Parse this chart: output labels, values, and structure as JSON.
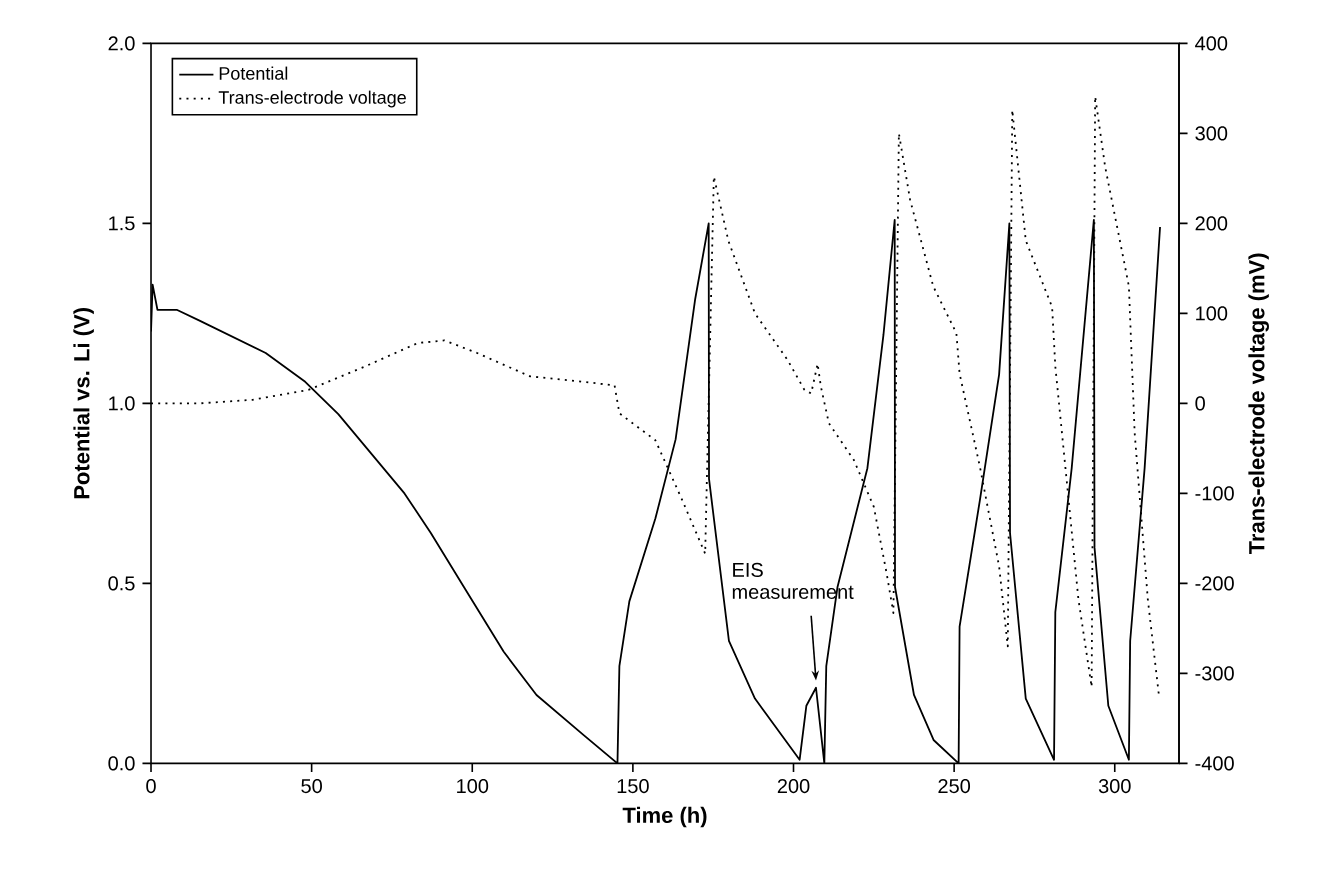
{
  "chart_data": {
    "type": "line",
    "xlabel": "Time (h)",
    "ylabel": "Potential vs. Li (V)",
    "y2label": "Trans-electrode voltage (mV)",
    "xlim": [
      0,
      320
    ],
    "xticks": [
      0,
      50,
      100,
      150,
      200,
      250,
      300
    ],
    "ylim": [
      0,
      2
    ],
    "yticks": [
      {
        "value": 0,
        "label": "0.0"
      },
      {
        "value": 0.5,
        "label": "0.5"
      },
      {
        "value": 1,
        "label": "1.0"
      },
      {
        "value": 1.5,
        "label": "1.5"
      },
      {
        "value": 2,
        "label": "2.0"
      }
    ],
    "y2lim": [
      -400,
      400
    ],
    "y2ticks": [
      -400,
      -300,
      -200,
      -100,
      0,
      100,
      200,
      300,
      400
    ],
    "legend": "top left",
    "annotations": [
      {
        "text": "EIS measurement",
        "x": 207,
        "y": 0.21
      }
    ],
    "series": [
      {
        "name": "Potential",
        "color": "#000000",
        "line_style": "solid",
        "x": [
          0,
          0.5,
          2,
          8,
          15.1,
          35.7,
          48,
          58.3,
          68.6,
          78.9,
          87.1,
          97.4,
          109.8,
          120,
          134.5,
          145.2,
          145.8,
          148.9,
          157,
          163.3,
          169.4,
          173.6,
          173.7,
          179.9,
          188,
          201.9,
          204,
          207,
          209.6,
          210.2,
          213.7,
          223,
          228,
          231.5,
          231.6,
          237.5,
          243.6,
          251.4,
          251.7,
          258,
          264,
          267.2,
          267.4,
          272.3,
          281.1,
          281.5,
          286.6,
          293.5,
          293.7,
          298,
          304.4,
          304.8,
          309.3,
          314.1
        ],
        "values": [
          1.2,
          1.33,
          1.26,
          1.26,
          1.23,
          1.14,
          1.06,
          0.97,
          0.86,
          0.75,
          0.64,
          0.49,
          0.31,
          0.19,
          0.08,
          0,
          0.27,
          0.45,
          0.68,
          0.9,
          1.29,
          1.5,
          0.79,
          0.34,
          0.18,
          0.01,
          0.16,
          0.21,
          0,
          0.27,
          0.49,
          0.82,
          1.19,
          1.51,
          0.49,
          0.19,
          0.065,
          0,
          0.38,
          0.73,
          1.08,
          1.5,
          0.64,
          0.18,
          0.01,
          0.42,
          0.82,
          1.51,
          0.6,
          0.16,
          0.01,
          0.34,
          0.82,
          1.49
        ]
      },
      {
        "name": "Trans-electrode voltage",
        "color": "#000000",
        "line_style": "dotted",
        "axis": "y2",
        "x": [
          0,
          15.1,
          31.6,
          49,
          66.6,
          83,
          91.3,
          101.5,
          118,
          134.5,
          144.3,
          145.8,
          157,
          165.3,
          172.5,
          175.2,
          179.7,
          188,
          198.2,
          203.4,
          205.5,
          207.5,
          208.5,
          211,
          218.8,
          225,
          229,
          231.1,
          232.8,
          236.3,
          243.5,
          250.7,
          251.7,
          258,
          264,
          266.7,
          268.1,
          272.3,
          280.5,
          281.5,
          284.6,
          288.7,
          292.8,
          293.9,
          297,
          303.2,
          304.4,
          306.2,
          310.3,
          313.8
        ],
        "values": [
          0,
          0,
          4,
          15,
          41,
          67,
          70,
          56,
          30,
          24,
          20,
          -11,
          -41,
          -107,
          -167,
          252,
          181,
          100,
          48,
          15,
          11,
          44,
          19,
          -22,
          -63,
          -115,
          -189,
          -233,
          300,
          226,
          130,
          78,
          33,
          -70,
          -181,
          -270,
          326,
          181,
          107,
          41,
          -70,
          -218,
          -315,
          341,
          263,
          152,
          130,
          -33,
          -218,
          -326
        ]
      }
    ]
  }
}
